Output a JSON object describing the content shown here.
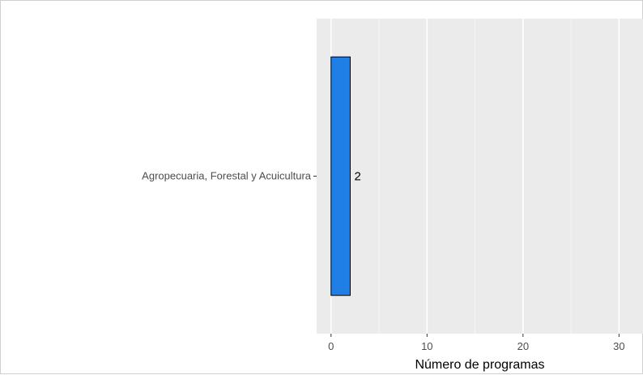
{
  "chart_data": {
    "type": "bar",
    "orientation": "horizontal",
    "categories": [
      "Agropecuaria, Forestal y Acuicultura"
    ],
    "values": [
      2
    ],
    "data_labels": [
      "2"
    ],
    "title": "",
    "xlabel": "Número de programas",
    "ylabel": "",
    "xlim": [
      -1.5,
      32.5
    ],
    "x_ticks": [
      0,
      10,
      20,
      30
    ],
    "x_tick_labels": [
      "0",
      "10",
      "20",
      "30"
    ],
    "grid": true,
    "legend": "none",
    "colors": {
      "bar_fill": "#1f7fe6",
      "bar_stroke": "#000000",
      "panel_bg": "#ebebeb",
      "grid_major": "#ffffff",
      "grid_minor": "#f5f5f5"
    }
  }
}
